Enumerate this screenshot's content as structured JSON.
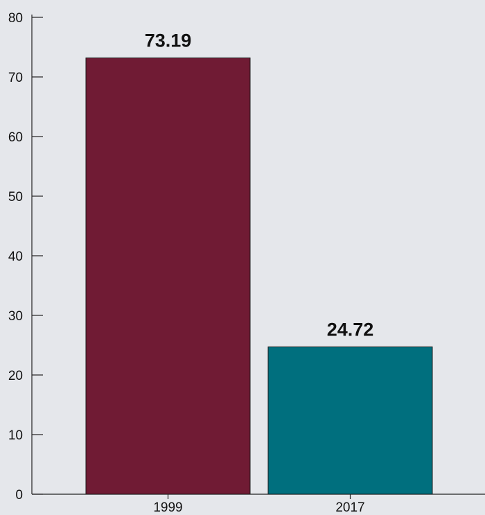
{
  "chart_data": {
    "type": "bar",
    "categories": [
      "1999",
      "2017"
    ],
    "values": [
      73.19,
      24.72
    ],
    "value_labels": [
      "73.19",
      "24.72"
    ],
    "colors": [
      "#701b34",
      "#006f7e"
    ],
    "title": "",
    "xlabel": "",
    "ylabel": "",
    "ylim": [
      0,
      80
    ],
    "yticks": [
      0,
      10,
      20,
      30,
      40,
      50,
      60,
      70,
      80
    ],
    "grid": false,
    "legend": "none"
  }
}
